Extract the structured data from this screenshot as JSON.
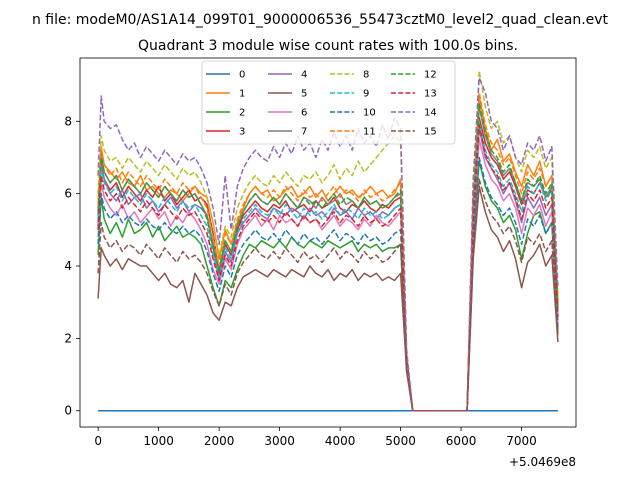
{
  "chart_data": {
    "type": "line",
    "suptitle": "n file: modeM0/AS1A14_099T01_9000006536_55473cztM0_level2_quad_clean.evt",
    "title": "Quadrant 3 module wise count rates with 100.0s bins.",
    "xlabel": "",
    "ylabel": "",
    "x_offset_label": "+5.0469e8",
    "xlim": [
      -300,
      7900
    ],
    "ylim": [
      -0.45,
      9.75
    ],
    "xticks": [
      0,
      1000,
      2000,
      3000,
      4000,
      5000,
      6000,
      7000
    ],
    "yticks": [
      0,
      2,
      4,
      6,
      8
    ],
    "legend_position": "top-center",
    "x": [
      0,
      50,
      100,
      200,
      300,
      400,
      500,
      600,
      700,
      800,
      900,
      1000,
      1100,
      1200,
      1300,
      1400,
      1500,
      1600,
      1700,
      1800,
      1900,
      2000,
      2100,
      2200,
      2300,
      2400,
      2500,
      2600,
      2700,
      2800,
      2900,
      3000,
      3100,
      3200,
      3300,
      3400,
      3500,
      3600,
      3700,
      3800,
      3900,
      4000,
      4100,
      4200,
      4300,
      4400,
      4500,
      4600,
      4700,
      4800,
      4900,
      5000,
      5100,
      5200,
      6100,
      6200,
      6300,
      6400,
      6500,
      6600,
      6700,
      6800,
      6900,
      7000,
      7100,
      7200,
      7300,
      7400,
      7500,
      7600
    ],
    "series": [
      {
        "name": "0",
        "color": "#1f77b4",
        "dash": "solid",
        "values": [
          0,
          0,
          0,
          0,
          0,
          0,
          0,
          0,
          0,
          0,
          0,
          0,
          0,
          0,
          0,
          0,
          0,
          0,
          0,
          0,
          0,
          0,
          0,
          0,
          0,
          0,
          0,
          0,
          0,
          0,
          0,
          0,
          0,
          0,
          0,
          0,
          0,
          0,
          0,
          0,
          0,
          0,
          0,
          0,
          0,
          0,
          0,
          0,
          0,
          0,
          0,
          0,
          0,
          0,
          0,
          0,
          0,
          0,
          0,
          0,
          0,
          0,
          0,
          0,
          0,
          0,
          0,
          0,
          0,
          0
        ]
      },
      {
        "name": "1",
        "color": "#ff7f0e",
        "dash": "solid",
        "values": [
          5.6,
          7.3,
          6.8,
          6.6,
          6.4,
          6.6,
          6.3,
          6.2,
          6.5,
          6.1,
          6.2,
          6.0,
          5.9,
          6.1,
          6.0,
          5.8,
          6.0,
          6.2,
          6.0,
          5.9,
          5.2,
          4.2,
          5.0,
          4.6,
          5.2,
          5.6,
          6.0,
          6.2,
          6.0,
          6.1,
          5.8,
          5.9,
          6.1,
          6.2,
          5.9,
          6.0,
          6.2,
          5.9,
          6.1,
          5.8,
          6.0,
          6.2,
          6.0,
          6.1,
          5.9,
          6.0,
          6.2,
          6.0,
          6.1,
          5.9,
          6.0,
          6.4,
          1.5,
          0,
          0,
          5.8,
          8.7,
          7.8,
          7.2,
          7.5,
          6.9,
          7.1,
          6.6,
          6.2,
          6.8,
          6.5,
          6.9,
          6.2,
          6.5,
          3.0
        ]
      },
      {
        "name": "2",
        "color": "#2ca02c",
        "dash": "solid",
        "values": [
          4.3,
          5.9,
          5.3,
          4.9,
          5.2,
          4.8,
          5.3,
          4.9,
          5.0,
          5.2,
          4.8,
          5.1,
          4.7,
          4.9,
          5.1,
          4.8,
          4.9,
          4.8,
          4.6,
          4.0,
          3.4,
          2.9,
          3.6,
          3.4,
          3.9,
          4.3,
          4.6,
          4.5,
          4.7,
          4.6,
          4.5,
          4.7,
          4.5,
          4.8,
          4.6,
          4.5,
          4.7,
          4.6,
          4.5,
          4.7,
          4.6,
          4.5,
          4.6,
          4.7,
          4.4,
          4.6,
          4.5,
          4.6,
          4.4,
          4.5,
          4.5,
          4.6,
          1.3,
          0,
          0,
          4.8,
          6.9,
          6.2,
          5.8,
          5.6,
          5.2,
          5.4,
          5.0,
          4.2,
          4.9,
          5.4,
          5.5,
          4.9,
          5.2,
          2.2
        ]
      },
      {
        "name": "3",
        "color": "#d62728",
        "dash": "solid",
        "values": [
          5.2,
          6.8,
          6.4,
          6.1,
          6.3,
          5.9,
          6.2,
          6.0,
          5.8,
          6.1,
          5.9,
          6.2,
          5.8,
          6.0,
          5.7,
          5.9,
          6.1,
          5.8,
          5.9,
          5.7,
          4.9,
          3.8,
          4.6,
          4.3,
          5.0,
          5.4,
          5.6,
          5.8,
          5.6,
          5.5,
          5.7,
          5.6,
          5.8,
          5.5,
          5.6,
          5.7,
          5.5,
          5.8,
          5.6,
          5.7,
          5.9,
          5.6,
          5.5,
          5.7,
          5.6,
          5.8,
          5.6,
          5.5,
          5.7,
          5.6,
          5.8,
          5.9,
          1.4,
          0,
          0,
          5.4,
          8.1,
          7.4,
          7.0,
          6.8,
          6.4,
          6.6,
          6.2,
          5.7,
          6.1,
          6.0,
          6.3,
          5.9,
          6.1,
          2.6
        ]
      },
      {
        "name": "4",
        "color": "#9467bd",
        "dash": "solid",
        "values": [
          5.1,
          6.9,
          6.4,
          6.0,
          5.8,
          6.1,
          5.7,
          5.9,
          6.0,
          5.6,
          5.8,
          5.5,
          5.7,
          5.9,
          5.6,
          5.8,
          5.5,
          5.7,
          5.6,
          5.4,
          4.5,
          3.6,
          4.4,
          4.1,
          4.9,
          5.2,
          5.4,
          5.6,
          5.4,
          5.3,
          5.6,
          5.5,
          5.4,
          5.6,
          5.5,
          5.3,
          5.6,
          5.4,
          5.5,
          5.3,
          5.6,
          5.4,
          5.5,
          5.3,
          5.6,
          5.4,
          5.5,
          5.3,
          5.5,
          5.4,
          5.6,
          5.7,
          1.4,
          0,
          0,
          5.2,
          7.8,
          7.0,
          6.7,
          6.4,
          6.0,
          6.3,
          5.8,
          5.2,
          5.9,
          5.6,
          5.9,
          5.4,
          5.7,
          2.5
        ]
      },
      {
        "name": "5",
        "color": "#8c564b",
        "dash": "solid",
        "values": [
          3.1,
          4.5,
          4.3,
          4.0,
          4.2,
          3.9,
          4.2,
          4.1,
          4.0,
          4.0,
          3.8,
          3.6,
          3.8,
          3.5,
          3.4,
          3.6,
          3.0,
          3.8,
          3.5,
          3.2,
          2.7,
          2.5,
          3.0,
          2.9,
          3.4,
          3.7,
          3.8,
          3.9,
          3.8,
          3.7,
          3.9,
          3.8,
          3.7,
          3.9,
          3.8,
          3.7,
          4.0,
          3.8,
          3.7,
          3.9,
          3.6,
          3.8,
          3.7,
          3.9,
          3.6,
          3.8,
          3.7,
          3.8,
          3.6,
          3.7,
          3.6,
          3.8,
          1.1,
          0,
          0,
          4.2,
          6.2,
          5.5,
          5.0,
          4.8,
          4.4,
          4.7,
          4.2,
          3.4,
          4.1,
          4.3,
          4.6,
          4.0,
          4.3,
          1.9
        ]
      },
      {
        "name": "6",
        "color": "#e377c2",
        "dash": "solid",
        "values": [
          4.8,
          6.3,
          5.9,
          5.6,
          5.4,
          5.7,
          5.3,
          5.5,
          5.2,
          5.4,
          5.6,
          5.3,
          5.5,
          5.1,
          5.4,
          5.2,
          5.5,
          5.3,
          5.0,
          4.6,
          3.9,
          3.5,
          4.2,
          3.9,
          4.6,
          5.0,
          5.2,
          5.4,
          5.1,
          5.3,
          5.0,
          5.4,
          5.2,
          5.3,
          5.1,
          5.4,
          5.2,
          5.3,
          5.0,
          5.2,
          5.4,
          5.1,
          5.3,
          5.2,
          5.0,
          5.3,
          5.1,
          5.4,
          5.2,
          5.1,
          5.3,
          5.5,
          1.4,
          0,
          0,
          5.1,
          7.5,
          6.8,
          6.4,
          6.2,
          5.8,
          6.0,
          5.6,
          4.9,
          5.6,
          5.4,
          5.7,
          5.1,
          5.5,
          2.4
        ]
      },
      {
        "name": "7",
        "color": "#7f7f7f",
        "dash": "solid",
        "values": [
          5.4,
          7.1,
          6.6,
          6.3,
          6.5,
          6.1,
          6.4,
          6.2,
          6.0,
          6.3,
          6.1,
          5.9,
          6.2,
          6.0,
          5.8,
          6.1,
          5.9,
          6.0,
          5.7,
          5.4,
          4.6,
          3.9,
          4.7,
          4.4,
          5.1,
          5.5,
          5.8,
          6.0,
          5.8,
          5.7,
          5.9,
          5.7,
          6.0,
          5.8,
          5.6,
          5.9,
          5.8,
          5.6,
          5.9,
          5.7,
          5.8,
          6.0,
          5.7,
          5.8,
          5.6,
          5.9,
          5.7,
          5.8,
          5.6,
          5.7,
          5.9,
          6.0,
          1.5,
          0,
          0,
          5.6,
          8.4,
          7.6,
          7.1,
          6.9,
          6.5,
          6.7,
          6.3,
          5.8,
          6.3,
          6.2,
          6.4,
          5.9,
          6.2,
          2.8
        ]
      },
      {
        "name": "8",
        "color": "#bcbd22",
        "dash": "dashed",
        "values": [
          6.0,
          7.6,
          7.2,
          6.9,
          7.0,
          6.7,
          7.0,
          6.8,
          6.6,
          6.9,
          6.7,
          6.5,
          6.8,
          6.6,
          6.4,
          6.7,
          6.5,
          6.6,
          6.3,
          5.9,
          5.2,
          4.3,
          5.1,
          4.8,
          5.6,
          6.0,
          6.3,
          6.5,
          6.3,
          6.2,
          6.5,
          6.3,
          6.6,
          6.4,
          6.2,
          6.5,
          6.4,
          6.6,
          6.3,
          6.5,
          6.8,
          6.4,
          6.7,
          6.5,
          6.9,
          6.6,
          6.8,
          7.0,
          7.2,
          7.4,
          7.6,
          7.4,
          1.6,
          0,
          0,
          6.0,
          9.4,
          8.4,
          7.8,
          8.0,
          7.4,
          7.6,
          7.0,
          6.6,
          7.2,
          7.0,
          7.3,
          6.7,
          7.0,
          3.2
        ]
      },
      {
        "name": "9",
        "color": "#17becf",
        "dash": "dashed",
        "values": [
          5.3,
          6.7,
          6.3,
          6.0,
          6.2,
          5.8,
          6.1,
          5.9,
          5.7,
          6.0,
          5.8,
          5.6,
          5.9,
          5.7,
          5.5,
          5.8,
          5.6,
          5.7,
          5.4,
          5.1,
          4.3,
          3.7,
          4.5,
          4.2,
          4.9,
          5.3,
          5.5,
          5.7,
          5.5,
          5.4,
          5.6,
          5.4,
          5.7,
          5.5,
          5.3,
          5.6,
          5.4,
          5.5,
          5.3,
          5.5,
          5.7,
          5.4,
          5.6,
          5.5,
          5.3,
          5.6,
          5.4,
          5.5,
          5.3,
          5.4,
          5.6,
          5.7,
          1.4,
          0,
          0,
          5.3,
          8.0,
          7.2,
          6.8,
          6.6,
          6.2,
          6.4,
          6.0,
          5.5,
          6.2,
          6.0,
          6.3,
          5.8,
          6.1,
          2.6
        ]
      },
      {
        "name": "10",
        "color": "#1f77b4",
        "dash": "dashed",
        "values": [
          4.6,
          6.0,
          5.6,
          5.3,
          5.5,
          5.2,
          5.4,
          5.2,
          5.1,
          5.3,
          5.1,
          5.0,
          5.2,
          5.0,
          4.9,
          5.1,
          4.9,
          5.0,
          4.8,
          4.4,
          3.8,
          3.3,
          4.0,
          3.7,
          4.3,
          4.6,
          4.8,
          5.0,
          4.8,
          4.7,
          4.9,
          4.7,
          5.0,
          4.8,
          4.6,
          4.9,
          4.7,
          4.8,
          4.6,
          4.8,
          5.0,
          4.7,
          4.9,
          4.8,
          4.6,
          4.9,
          4.7,
          4.8,
          4.6,
          4.7,
          4.9,
          5.0,
          1.2,
          0,
          0,
          4.6,
          7.0,
          6.3,
          5.9,
          5.7,
          5.4,
          5.6,
          5.2,
          4.6,
          5.3,
          5.1,
          5.4,
          4.9,
          5.2,
          2.3
        ]
      },
      {
        "name": "11",
        "color": "#ff7f0e",
        "dash": "dashed",
        "values": [
          5.8,
          7.2,
          6.8,
          6.5,
          6.7,
          6.3,
          6.6,
          6.4,
          6.2,
          6.5,
          6.3,
          6.1,
          6.4,
          6.2,
          6.0,
          6.3,
          6.1,
          6.2,
          5.9,
          5.6,
          4.8,
          4.0,
          4.9,
          4.6,
          5.3,
          5.7,
          6.0,
          6.2,
          6.0,
          5.9,
          6.1,
          5.9,
          6.2,
          6.0,
          5.8,
          6.1,
          5.9,
          6.0,
          5.8,
          6.0,
          6.2,
          5.9,
          6.1,
          6.0,
          5.8,
          6.1,
          5.9,
          6.0,
          5.8,
          5.9,
          6.1,
          6.3,
          1.5,
          0,
          0,
          5.8,
          8.8,
          7.9,
          7.4,
          7.2,
          6.8,
          7.0,
          6.5,
          6.0,
          6.6,
          6.4,
          6.7,
          6.2,
          6.5,
          2.9
        ]
      },
      {
        "name": "12",
        "color": "#2ca02c",
        "dash": "dashed",
        "values": [
          5.5,
          7.0,
          6.6,
          6.3,
          6.5,
          6.1,
          6.4,
          6.2,
          6.0,
          6.3,
          6.1,
          5.9,
          6.2,
          6.0,
          5.8,
          6.1,
          5.9,
          6.0,
          5.7,
          5.3,
          4.5,
          3.9,
          4.7,
          4.4,
          5.1,
          5.5,
          5.8,
          6.0,
          5.8,
          5.7,
          5.9,
          5.7,
          6.0,
          5.8,
          5.6,
          5.9,
          5.7,
          5.8,
          5.6,
          5.8,
          6.0,
          5.7,
          5.9,
          5.8,
          5.6,
          5.9,
          5.7,
          5.8,
          5.6,
          5.7,
          5.9,
          6.1,
          1.5,
          0,
          0,
          5.6,
          8.5,
          7.7,
          7.2,
          7.0,
          6.6,
          6.8,
          6.3,
          5.8,
          6.4,
          6.2,
          6.5,
          6.0,
          6.3,
          2.8
        ]
      },
      {
        "name": "13",
        "color": "#d62728",
        "dash": "dashed",
        "values": [
          5.0,
          6.5,
          6.1,
          5.8,
          6.0,
          5.6,
          5.9,
          5.7,
          5.5,
          5.8,
          5.6,
          5.4,
          5.7,
          5.5,
          5.3,
          5.6,
          5.4,
          5.5,
          5.2,
          4.9,
          4.2,
          3.6,
          4.3,
          4.0,
          4.7,
          5.1,
          5.3,
          5.5,
          5.3,
          5.2,
          5.4,
          5.2,
          5.5,
          5.3,
          5.1,
          5.4,
          5.2,
          5.3,
          5.1,
          5.3,
          5.5,
          5.2,
          5.4,
          5.3,
          5.1,
          5.4,
          5.2,
          5.3,
          5.1,
          5.2,
          5.4,
          5.6,
          1.4,
          0,
          0,
          5.2,
          7.9,
          7.1,
          6.7,
          6.5,
          6.1,
          6.3,
          5.9,
          5.3,
          6.0,
          5.8,
          6.1,
          5.6,
          5.9,
          2.6
        ]
      },
      {
        "name": "14",
        "color": "#9467bd",
        "dash": "dashed",
        "values": [
          6.5,
          8.7,
          8.0,
          7.8,
          7.9,
          7.5,
          7.2,
          7.4,
          7.0,
          7.3,
          7.1,
          6.9,
          7.2,
          7.0,
          6.8,
          7.1,
          6.9,
          7.0,
          6.7,
          6.3,
          5.6,
          4.6,
          6.5,
          5.0,
          6.2,
          6.7,
          7.0,
          7.2,
          7.0,
          6.9,
          7.3,
          7.0,
          7.4,
          7.1,
          7.6,
          7.2,
          7.4,
          7.0,
          7.5,
          7.2,
          7.7,
          7.3,
          7.6,
          7.2,
          7.8,
          7.4,
          7.6,
          7.3,
          7.9,
          7.5,
          8.1,
          7.8,
          1.7,
          0,
          0,
          6.4,
          9.2,
          8.8,
          8.0,
          7.8,
          7.2,
          7.6,
          7.0,
          6.8,
          7.4,
          7.2,
          7.6,
          6.9,
          7.3,
          3.4
        ]
      },
      {
        "name": "15",
        "color": "#8c564b",
        "dash": "dashed",
        "values": [
          3.8,
          5.2,
          4.8,
          4.5,
          4.7,
          4.4,
          4.6,
          4.5,
          4.3,
          4.6,
          4.4,
          4.2,
          4.5,
          4.3,
          4.1,
          4.4,
          4.2,
          4.3,
          4.1,
          3.8,
          3.3,
          2.9,
          3.5,
          3.2,
          3.8,
          4.1,
          4.3,
          4.5,
          4.3,
          4.2,
          4.4,
          4.2,
          4.5,
          4.3,
          4.1,
          4.4,
          4.2,
          4.3,
          4.1,
          4.3,
          4.5,
          4.2,
          4.4,
          4.3,
          4.1,
          4.4,
          4.2,
          4.3,
          4.1,
          4.2,
          4.4,
          4.6,
          1.1,
          0,
          0,
          4.3,
          6.4,
          5.8,
          5.4,
          5.2,
          4.9,
          5.1,
          4.7,
          4.1,
          4.8,
          4.6,
          4.9,
          4.4,
          4.7,
          2.1
        ]
      }
    ]
  }
}
